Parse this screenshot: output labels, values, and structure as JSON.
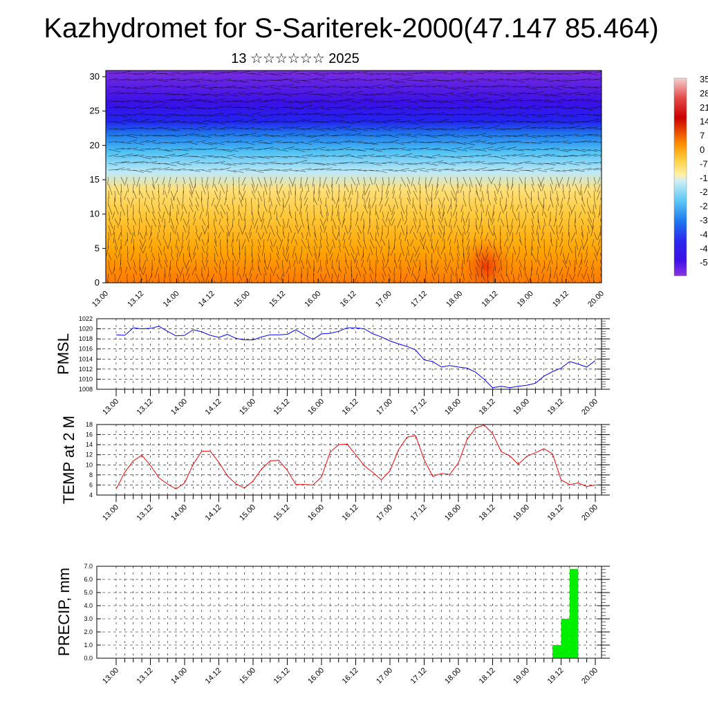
{
  "page": {
    "title": "Kazhydromet for S-Sariterek-2000(47.147 85.464)",
    "subtitle": "13 ☆☆☆☆☆☆ 2025"
  },
  "colors": {
    "pressure_line": "#0000ff",
    "temperature_line": "#ff0000",
    "precip_bar": "#00ee00",
    "grid": "#000000"
  },
  "chart_data": [
    {
      "type": "heatmap",
      "title": "",
      "xlabel": "",
      "ylabel": "",
      "x_ticks": [
        "13.00",
        "13.12",
        "14.00",
        "14.12",
        "15.00",
        "15.12",
        "16.00",
        "16.12",
        "17.00",
        "17.12",
        "18.00",
        "18.12",
        "19.00",
        "19.12",
        "20.00"
      ],
      "y_ticks": [
        0,
        5,
        10,
        15,
        20,
        25,
        30
      ],
      "ylim": [
        0,
        30.9
      ],
      "colorbar_labels": [
        "35",
        "28",
        "21",
        "14",
        "7",
        "0",
        "-7",
        "-1",
        "-2",
        "-2",
        "-3",
        "-4",
        "-4",
        "-5"
      ],
      "colorbar_colors": [
        "#f3c8c8",
        "#e84848",
        "#cc0000",
        "#e84000",
        "#ff9900",
        "#ffdd55",
        "#fff3b0",
        "#c9ecf5",
        "#7fd6f5",
        "#2fb8f0",
        "#1e6fe8",
        "#2b2bf0",
        "#3b10e8",
        "#8030e0"
      ],
      "overlay": "wind vectors"
    },
    {
      "type": "line",
      "ylabel": "PMSL",
      "x_ticks": [
        "13.00",
        "13.12",
        "14.00",
        "14.12",
        "15.00",
        "15.12",
        "16.00",
        "16.12",
        "17.00",
        "17.12",
        "18.00",
        "18.12",
        "19.00",
        "19.12",
        "20.00"
      ],
      "y_ticks": [
        1008,
        1010,
        1012,
        1014,
        1016,
        1018,
        1020,
        1022
      ],
      "ylim": [
        1008,
        1022
      ],
      "x_hours": [
        0,
        3,
        6,
        9,
        12,
        15,
        18,
        21,
        24,
        27,
        30,
        33,
        36,
        39,
        42,
        45,
        48,
        51,
        54,
        57,
        60,
        63,
        66,
        69,
        72,
        75,
        78,
        81,
        84,
        87,
        90,
        93,
        96,
        99,
        102,
        105,
        108,
        111,
        114,
        117,
        120,
        123,
        126,
        129,
        132,
        135,
        138,
        141,
        144,
        147,
        150,
        153,
        156,
        159,
        162,
        165,
        168
      ],
      "series": [
        {
          "values": [
            1018.8,
            1018.7,
            1020.2,
            1020.0,
            1020.1,
            1020.5,
            1019.5,
            1018.6,
            1018.7,
            1019.8,
            1019.4,
            1018.7,
            1018.3,
            1018.9,
            1018.1,
            1017.8,
            1017.8,
            1018.4,
            1018.8,
            1018.8,
            1018.9,
            1019.8,
            1018.8,
            1017.9,
            1019.0,
            1019.1,
            1019.5,
            1020.2,
            1020.2,
            1020.0,
            1019.0,
            1018.4,
            1017.6,
            1017.0,
            1016.5,
            1015.8,
            1013.8,
            1013.5,
            1012.4,
            1012.7,
            1012.4,
            1012.2,
            1011.4,
            1010.0,
            1008.3,
            1008.6,
            1008.3,
            1008.6,
            1008.8,
            1009.2,
            1010.6,
            1011.5,
            1012.2,
            1013.5,
            1013.0,
            1012.4,
            1013.7
          ]
        }
      ]
    },
    {
      "type": "line",
      "ylabel": "TEMP at 2 M",
      "x_ticks": [
        "13.00",
        "13.12",
        "14.00",
        "14.12",
        "15.00",
        "15.12",
        "16.00",
        "16.12",
        "17.00",
        "17.12",
        "18.00",
        "18.12",
        "19.00",
        "19.12",
        "20.00"
      ],
      "y_ticks": [
        4,
        6,
        8,
        10,
        12,
        14,
        16,
        18
      ],
      "ylim": [
        4,
        18
      ],
      "x_hours": [
        0,
        3,
        6,
        9,
        12,
        15,
        18,
        21,
        24,
        27,
        30,
        33,
        36,
        39,
        42,
        45,
        48,
        51,
        54,
        57,
        60,
        63,
        66,
        69,
        72,
        75,
        78,
        81,
        84,
        87,
        90,
        93,
        96,
        99,
        102,
        105,
        108,
        111,
        114,
        117,
        120,
        123,
        126,
        129,
        132,
        135,
        138,
        141,
        144,
        147,
        150,
        153,
        156,
        159,
        162,
        165,
        168
      ],
      "series": [
        {
          "values": [
            5.2,
            8.5,
            10.8,
            11.9,
            9.9,
            7.4,
            6.2,
            5.2,
            6.4,
            10.1,
            12.7,
            12.7,
            10.5,
            7.8,
            6.2,
            5.4,
            6.8,
            9.2,
            10.8,
            10.9,
            8.9,
            6.1,
            6.1,
            6.0,
            7.6,
            12.5,
            14.0,
            14.1,
            12.0,
            9.8,
            8.5,
            7.0,
            8.8,
            13.0,
            15.5,
            15.8,
            11.0,
            7.7,
            8.3,
            8.1,
            10.4,
            15.0,
            17.3,
            17.9,
            16.2,
            12.6,
            11.8,
            10.1,
            11.7,
            12.4,
            13.2,
            12.2,
            7.0,
            6.1,
            6.4,
            5.7,
            6.0
          ]
        }
      ]
    },
    {
      "type": "bar",
      "ylabel": "PRECIP, mm",
      "x_ticks": [
        "13.00",
        "13.12",
        "14.00",
        "14.12",
        "15.00",
        "15.12",
        "16.00",
        "16.12",
        "17.00",
        "17.12",
        "18.00",
        "18.12",
        "19.00",
        "19.12",
        "20.00"
      ],
      "y_ticks": [
        "0.0",
        "1.0",
        "2.0",
        "3.0",
        "4.0",
        "5.0",
        "6.0",
        "7.0"
      ],
      "ylim": [
        0,
        7
      ],
      "bars": [
        {
          "start_hour": 153,
          "end_hour": 156,
          "value": 1.0
        },
        {
          "start_hour": 156,
          "end_hour": 159,
          "value": 3.0
        },
        {
          "start_hour": 159,
          "end_hour": 162,
          "value": 6.8
        }
      ]
    }
  ]
}
